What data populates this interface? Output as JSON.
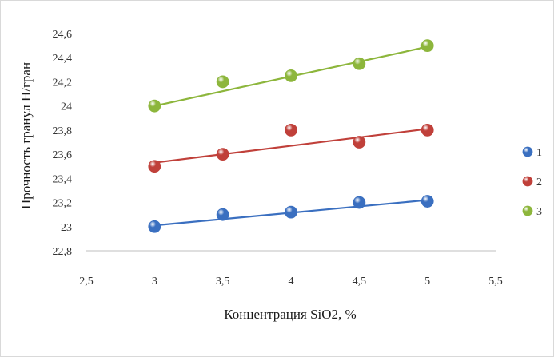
{
  "chart_data": {
    "type": "scatter",
    "title": "",
    "xlabel": "Концентрация SiO2, %",
    "ylabel": "Прочность гранул Н/гран",
    "xlim": [
      2.5,
      5.5
    ],
    "ylim": [
      22.8,
      24.6
    ],
    "x_ticks": [
      "2,5",
      "3",
      "3,5",
      "4",
      "4,5",
      "5",
      "5,5"
    ],
    "y_ticks": [
      "22,8",
      "23",
      "23,2",
      "23,4",
      "23,6",
      "23,8",
      "24",
      "24,2",
      "24,4",
      "24,6"
    ],
    "grid": false,
    "legend_position": "right",
    "series": [
      {
        "name": "1",
        "color": "#3a6fc0",
        "x": [
          3,
          3.5,
          4,
          4.5,
          5
        ],
        "y": [
          23.0,
          23.1,
          23.12,
          23.2,
          23.21
        ],
        "trendline": [
          [
            3,
            23.01
          ],
          [
            5,
            23.22
          ]
        ]
      },
      {
        "name": "2",
        "color": "#c0403a",
        "x": [
          3,
          3.5,
          4,
          4.5,
          5
        ],
        "y": [
          23.5,
          23.6,
          23.8,
          23.7,
          23.8
        ],
        "trendline": [
          [
            3,
            23.53
          ],
          [
            5,
            23.81
          ]
        ]
      },
      {
        "name": "3",
        "color": "#8db63c",
        "x": [
          3,
          3.5,
          4,
          4.5,
          5
        ],
        "y": [
          24.0,
          24.2,
          24.25,
          24.35,
          24.5
        ],
        "trendline": [
          [
            3,
            24.0
          ],
          [
            5,
            24.49
          ]
        ]
      }
    ]
  }
}
